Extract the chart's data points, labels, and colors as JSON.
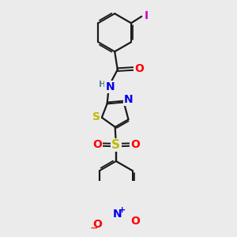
{
  "bg_color": "#ebebeb",
  "bond_color": "#1a1a1a",
  "bond_width": 1.6,
  "atom_colors": {
    "O": "#ff0000",
    "N": "#0000ee",
    "S": "#bbbb00",
    "I": "#cc00cc",
    "H": "#5b8a8a",
    "C": "#1a1a1a"
  },
  "font_size": 9
}
